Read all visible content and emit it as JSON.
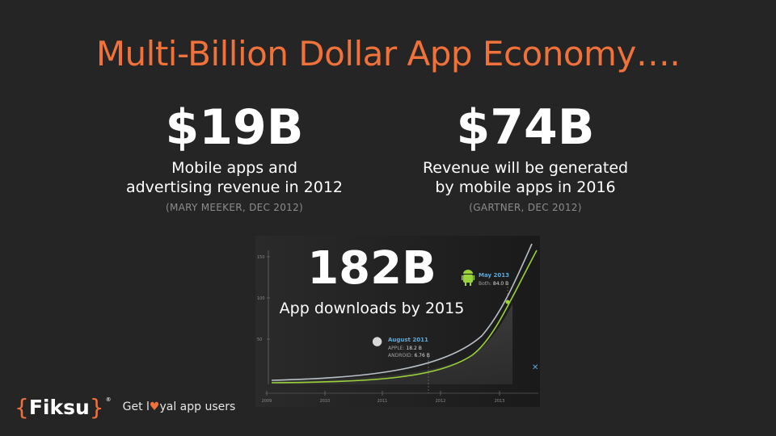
{
  "title": "Multi-Billion Dollar App Economy….",
  "stats": [
    {
      "value": "$19B",
      "desc_line1": "Mobile apps and",
      "desc_line2": "advertising revenue in 2012",
      "source": "(MARY MEEKER, DEC 2012)"
    },
    {
      "value": "$74B",
      "desc_line1": "Revenue will be generated",
      "desc_line2": "by mobile apps in 2016",
      "source": "(GARTNER, DEC 2012)"
    },
    {
      "value": "182B",
      "desc": "App downloads by 2015"
    }
  ],
  "chart_data": {
    "type": "line",
    "x_ticks": [
      "2009",
      "2010",
      "2011",
      "2012",
      "2013"
    ],
    "y_ticks": [
      "150",
      "100",
      "50"
    ],
    "series": [
      {
        "name": "APPLE",
        "color": "#b8c0c8"
      },
      {
        "name": "ANDROID",
        "color": "#9ad23a"
      }
    ],
    "annotations": [
      {
        "title": "August 2011",
        "line1_label": "APPLE:",
        "line1_value": "18.2 B",
        "line2_label": "ANDROID:",
        "line2_value": "6.76 B",
        "icon": "apple-icon"
      },
      {
        "title": "May 2013",
        "line1_label": "Both:",
        "line1_value": "84.0 B",
        "icon": "android-icon"
      }
    ]
  },
  "footer": {
    "brace_left": "{",
    "logo": "Fiksu",
    "brace_right": "}",
    "tm": "®",
    "tagline_pre": "Get l",
    "tagline_heart": "♥",
    "tagline_post": "yal app users"
  }
}
